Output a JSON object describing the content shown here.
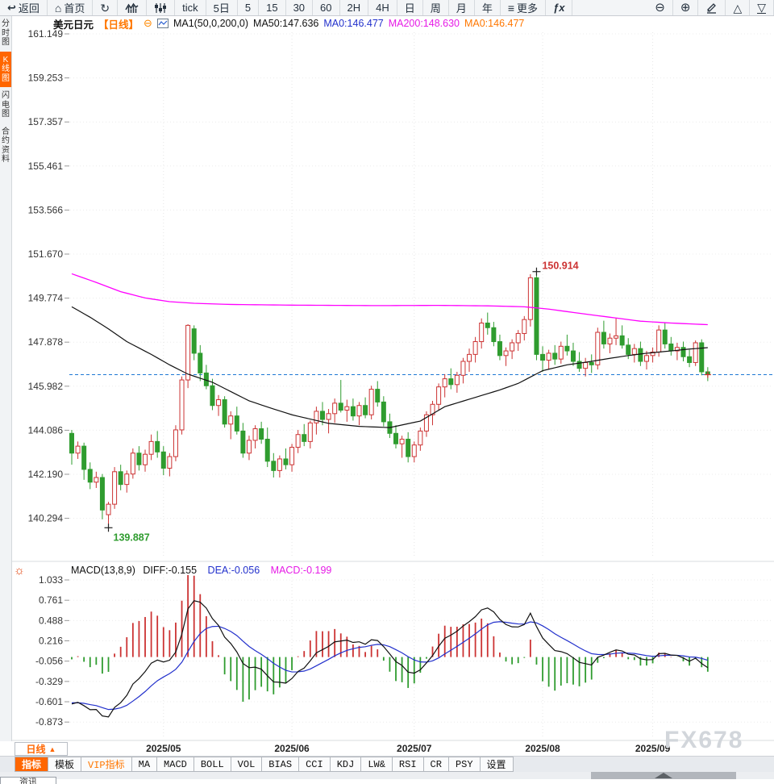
{
  "toolbar": {
    "items": [
      {
        "name": "back-button",
        "icon": "back",
        "label": "返回"
      },
      {
        "name": "home-button",
        "icon": "home",
        "label": "首页"
      },
      {
        "name": "refresh-button",
        "icon": "refresh",
        "label": ""
      },
      {
        "name": "area-chart-button",
        "icon": "area-chart",
        "label": ""
      },
      {
        "name": "candle-chart-button",
        "icon": "candle-chart",
        "label": ""
      },
      {
        "name": "tick-period-button",
        "label": "tick"
      },
      {
        "name": "period-5d-button",
        "label": "5日"
      },
      {
        "name": "period-5m-button",
        "label": "5"
      },
      {
        "name": "period-15m-button",
        "label": "15"
      },
      {
        "name": "period-30m-button",
        "label": "30"
      },
      {
        "name": "period-60m-button",
        "label": "60"
      },
      {
        "name": "period-2h-button",
        "label": "2H"
      },
      {
        "name": "period-4h-button",
        "label": "4H"
      },
      {
        "name": "period-day-button",
        "label": "日"
      },
      {
        "name": "period-week-button",
        "label": "周"
      },
      {
        "name": "period-month-button",
        "label": "月"
      },
      {
        "name": "period-year-button",
        "label": "年"
      },
      {
        "name": "more-button",
        "icon": "menu",
        "label": "更多"
      },
      {
        "name": "formula-button",
        "icon": "fx",
        "label": ""
      },
      {
        "name": "zoom-out-button",
        "icon": "zoom-out",
        "label": ""
      },
      {
        "name": "zoom-in-button",
        "icon": "zoom-in",
        "label": ""
      },
      {
        "name": "draw-button",
        "icon": "pencil",
        "label": ""
      },
      {
        "name": "triangle-up-button",
        "icon": "triangle-up",
        "label": ""
      },
      {
        "name": "collapse-bottom-button",
        "icon": "triangle-down",
        "label": ""
      }
    ]
  },
  "sidebar": {
    "items": [
      {
        "name": "sidebar-item-timeshare",
        "label": "分时图",
        "active": false
      },
      {
        "name": "sidebar-item-kline",
        "label": "K线图",
        "active": true
      },
      {
        "name": "sidebar-item-lightning",
        "label": "闪电图",
        "active": false
      },
      {
        "name": "sidebar-item-contract",
        "label": "合约资料",
        "active": false
      }
    ]
  },
  "chart_header": {
    "symbol": "美元日元",
    "period_tag": "【日线】",
    "collapse_glyph": "⊖",
    "ma_settings": "MA1(50,0,200,0)",
    "ma50": "MA50:147.636",
    "ma0_blue": "MA0:146.477",
    "ma200": "MA200:148.630",
    "ma0_orange": "MA0:146.477"
  },
  "macd_header": {
    "settings_glyph": "☼",
    "formula": "MACD(13,8,9)",
    "diff": "DIFF:-0.155",
    "dea": "DEA:-0.056",
    "macd": "MACD:-0.199"
  },
  "xaxis": {
    "period_button": {
      "label": "日线",
      "arrow": "▲"
    }
  },
  "tabbar": {
    "tabs": [
      {
        "name": "tab-indicator",
        "label": "指标",
        "active": true
      },
      {
        "name": "tab-template",
        "label": "模板"
      },
      {
        "name": "tab-vip-indicator",
        "label": "VIP指标",
        "vip": true
      },
      {
        "name": "tab-ma",
        "label": "MA"
      },
      {
        "name": "tab-macd",
        "label": "MACD"
      },
      {
        "name": "tab-boll",
        "label": "BOLL"
      },
      {
        "name": "tab-vol",
        "label": "VOL"
      },
      {
        "name": "tab-bias",
        "label": "BIAS"
      },
      {
        "name": "tab-cci",
        "label": "CCI"
      },
      {
        "name": "tab-kdj",
        "label": "KDJ"
      },
      {
        "name": "tab-lwr",
        "label": "LW&"
      },
      {
        "name": "tab-rsi",
        "label": "RSI"
      },
      {
        "name": "tab-cr",
        "label": "CR"
      },
      {
        "name": "tab-psy",
        "label": "PSY"
      },
      {
        "name": "tab-settings",
        "label": "设置"
      }
    ]
  },
  "watermark": "FX678",
  "bottom_partial_tab": "资讯",
  "colors": {
    "up_candle": "#cc3333",
    "down_candle": "#2f9c2f",
    "ma50_line": "#111111",
    "ma200_line": "#ff00ff",
    "current_price_line": "#1e78d4",
    "accent_orange": "#ff6600",
    "dea_line": "#2230cc",
    "diff_line": "#111111"
  },
  "chart_data": {
    "type": "candlestick+macd",
    "symbol": "美元日元",
    "period": "日线",
    "y_axis_labels": [
      "161.149",
      "159.253",
      "157.357",
      "155.461",
      "153.566",
      "151.670",
      "149.774",
      "147.878",
      "145.982",
      "144.086",
      "142.190",
      "140.294"
    ],
    "x_axis_months": [
      {
        "label": "2025/05",
        "index": 15
      },
      {
        "label": "2025/06",
        "index": 36
      },
      {
        "label": "2025/07",
        "index": 56
      },
      {
        "label": "2025/08",
        "index": 77
      },
      {
        "label": "2025/09",
        "index": 95
      }
    ],
    "current_price": 146.477,
    "high_annotation": {
      "index": 76,
      "price": 150.914,
      "label": "150.914"
    },
    "low_annotation": {
      "index": 6,
      "price": 139.887,
      "label": "139.887"
    },
    "candles": [
      [
        143.95,
        144.1,
        142.6,
        143.1
      ],
      [
        143.1,
        143.6,
        142.85,
        143.4
      ],
      [
        143.4,
        143.55,
        141.95,
        142.4
      ],
      [
        142.4,
        142.7,
        141.55,
        141.85
      ],
      [
        141.85,
        142.3,
        141.6,
        142.05
      ],
      [
        142.05,
        142.2,
        140.25,
        140.65
      ],
      [
        140.45,
        141.0,
        139.887,
        140.9
      ],
      [
        140.9,
        142.5,
        140.7,
        142.3
      ],
      [
        142.3,
        142.6,
        141.5,
        141.75
      ],
      [
        141.75,
        142.35,
        141.4,
        142.2
      ],
      [
        142.2,
        143.3,
        142.0,
        143.1
      ],
      [
        143.1,
        143.4,
        142.35,
        142.6
      ],
      [
        142.6,
        143.25,
        142.3,
        143.05
      ],
      [
        143.05,
        143.9,
        142.8,
        143.6
      ],
      [
        143.6,
        144.05,
        142.9,
        143.15
      ],
      [
        143.15,
        143.4,
        142.15,
        142.45
      ],
      [
        142.45,
        143.1,
        142.1,
        142.95
      ],
      [
        142.95,
        144.3,
        142.75,
        144.1
      ],
      [
        144.1,
        146.4,
        143.9,
        146.25
      ],
      [
        146.25,
        148.65,
        145.9,
        148.6
      ],
      [
        148.45,
        148.6,
        147.1,
        147.4
      ],
      [
        147.4,
        147.75,
        146.2,
        146.55
      ],
      [
        146.55,
        146.9,
        145.85,
        146.0
      ],
      [
        146.0,
        146.3,
        144.95,
        145.15
      ],
      [
        145.15,
        145.6,
        144.7,
        145.4
      ],
      [
        145.4,
        145.55,
        144.2,
        144.35
      ],
      [
        144.35,
        144.9,
        143.7,
        144.7
      ],
      [
        144.7,
        145.1,
        143.9,
        144.05
      ],
      [
        144.05,
        144.4,
        142.9,
        143.1
      ],
      [
        143.1,
        143.85,
        142.8,
        143.65
      ],
      [
        143.65,
        144.3,
        143.3,
        144.15
      ],
      [
        144.15,
        144.45,
        143.5,
        143.7
      ],
      [
        143.7,
        144.2,
        142.5,
        142.75
      ],
      [
        142.75,
        143.1,
        142.05,
        142.35
      ],
      [
        142.35,
        143.0,
        142.05,
        142.85
      ],
      [
        142.85,
        143.3,
        142.4,
        142.6
      ],
      [
        142.6,
        143.5,
        142.3,
        143.35
      ],
      [
        143.35,
        144.1,
        143.1,
        143.9
      ],
      [
        143.9,
        144.35,
        143.4,
        143.6
      ],
      [
        143.6,
        144.5,
        143.3,
        144.4
      ],
      [
        144.4,
        145.1,
        143.9,
        144.9
      ],
      [
        144.9,
        145.3,
        144.3,
        144.55
      ],
      [
        144.55,
        145.0,
        143.95,
        144.8
      ],
      [
        144.8,
        145.45,
        144.4,
        145.25
      ],
      [
        145.25,
        146.25,
        144.85,
        144.95
      ],
      [
        144.95,
        145.4,
        144.45,
        145.1
      ],
      [
        145.1,
        145.45,
        144.5,
        144.7
      ],
      [
        144.7,
        145.3,
        144.3,
        145.15
      ],
      [
        145.15,
        145.5,
        144.6,
        144.75
      ],
      [
        144.75,
        146.0,
        144.55,
        145.85
      ],
      [
        145.85,
        146.2,
        145.1,
        145.3
      ],
      [
        145.3,
        145.55,
        144.25,
        144.45
      ],
      [
        144.45,
        144.8,
        143.75,
        143.95
      ],
      [
        143.95,
        144.3,
        143.3,
        143.5
      ],
      [
        143.5,
        143.85,
        142.9,
        143.7
      ],
      [
        143.7,
        144.0,
        142.7,
        142.95
      ],
      [
        142.95,
        143.6,
        142.7,
        143.45
      ],
      [
        143.45,
        144.2,
        143.2,
        144.05
      ],
      [
        144.05,
        144.9,
        143.8,
        144.75
      ],
      [
        144.75,
        145.35,
        144.3,
        145.2
      ],
      [
        145.2,
        146.1,
        144.95,
        145.95
      ],
      [
        145.95,
        146.5,
        145.5,
        146.3
      ],
      [
        146.3,
        146.75,
        145.85,
        146.05
      ],
      [
        146.05,
        146.6,
        145.7,
        146.45
      ],
      [
        146.45,
        147.2,
        146.1,
        147.05
      ],
      [
        147.05,
        147.6,
        146.6,
        147.35
      ],
      [
        147.35,
        148.1,
        147.0,
        147.9
      ],
      [
        147.9,
        148.9,
        147.6,
        148.7
      ],
      [
        148.7,
        149.15,
        148.2,
        148.5
      ],
      [
        148.5,
        148.75,
        147.7,
        147.9
      ],
      [
        147.9,
        148.2,
        147.1,
        147.3
      ],
      [
        147.3,
        147.65,
        146.85,
        147.5
      ],
      [
        147.5,
        148.0,
        147.15,
        147.85
      ],
      [
        147.85,
        148.4,
        147.5,
        148.25
      ],
      [
        148.25,
        149.0,
        147.95,
        148.85
      ],
      [
        148.85,
        150.8,
        148.55,
        150.65
      ],
      [
        150.65,
        150.914,
        147.1,
        147.35
      ],
      [
        147.35,
        147.7,
        146.6,
        147.1
      ],
      [
        147.1,
        147.55,
        146.7,
        147.4
      ],
      [
        147.4,
        147.75,
        146.9,
        147.15
      ],
      [
        147.15,
        147.9,
        146.95,
        147.7
      ],
      [
        147.7,
        148.2,
        147.3,
        147.5
      ],
      [
        147.5,
        147.85,
        146.85,
        147.05
      ],
      [
        147.05,
        147.45,
        146.6,
        146.75
      ],
      [
        146.75,
        147.2,
        146.4,
        147.0
      ],
      [
        147.0,
        147.35,
        146.55,
        146.9
      ],
      [
        146.9,
        148.5,
        146.7,
        148.3
      ],
      [
        148.3,
        148.8,
        147.6,
        147.8
      ],
      [
        147.8,
        148.25,
        147.4,
        148.05
      ],
      [
        148.05,
        148.9,
        147.75,
        148.15
      ],
      [
        148.15,
        148.6,
        147.6,
        147.75
      ],
      [
        147.75,
        148.05,
        147.15,
        147.35
      ],
      [
        147.35,
        147.8,
        147.0,
        147.6
      ],
      [
        147.6,
        147.9,
        146.85,
        147.05
      ],
      [
        147.05,
        147.5,
        146.7,
        147.3
      ],
      [
        147.3,
        147.65,
        147.0,
        147.45
      ],
      [
        147.45,
        148.6,
        147.25,
        148.4
      ],
      [
        148.4,
        148.7,
        147.6,
        147.8
      ],
      [
        147.8,
        148.1,
        147.3,
        147.5
      ],
      [
        147.5,
        147.85,
        147.1,
        147.65
      ],
      [
        147.65,
        147.9,
        147.05,
        147.25
      ],
      [
        147.25,
        147.55,
        146.8,
        147.0
      ],
      [
        147.0,
        147.95,
        146.85,
        147.85
      ],
      [
        147.85,
        148.0,
        146.45,
        146.6
      ],
      [
        146.6,
        146.8,
        146.2,
        146.477
      ]
    ],
    "ma50_points": [
      [
        0,
        149.4
      ],
      [
        3,
        148.95
      ],
      [
        6,
        148.45
      ],
      [
        9,
        147.9
      ],
      [
        13,
        147.35
      ],
      [
        16,
        146.9
      ],
      [
        19,
        146.5
      ],
      [
        23,
        146.15
      ],
      [
        26,
        145.75
      ],
      [
        29,
        145.35
      ],
      [
        33,
        145.0
      ],
      [
        36,
        144.75
      ],
      [
        42,
        144.38
      ],
      [
        47,
        144.25
      ],
      [
        52,
        144.2
      ],
      [
        57,
        144.48
      ],
      [
        61,
        145.1
      ],
      [
        66,
        145.5
      ],
      [
        70,
        145.82
      ],
      [
        73,
        146.1
      ],
      [
        77,
        146.65
      ],
      [
        81,
        146.9
      ],
      [
        85,
        147.05
      ],
      [
        88,
        147.18
      ],
      [
        91,
        147.3
      ],
      [
        94,
        147.4
      ],
      [
        98,
        147.5
      ],
      [
        101,
        147.58
      ],
      [
        104,
        147.64
      ]
    ],
    "ma200_points": [
      [
        0,
        150.82
      ],
      [
        4,
        150.45
      ],
      [
        8,
        150.05
      ],
      [
        12,
        149.78
      ],
      [
        16,
        149.62
      ],
      [
        20,
        149.55
      ],
      [
        26,
        149.5
      ],
      [
        36,
        149.47
      ],
      [
        50,
        149.45
      ],
      [
        60,
        149.46
      ],
      [
        68,
        149.44
      ],
      [
        74,
        149.4
      ],
      [
        78,
        149.3
      ],
      [
        83,
        149.12
      ],
      [
        88,
        148.95
      ],
      [
        93,
        148.78
      ],
      [
        98,
        148.7
      ],
      [
        104,
        148.63
      ]
    ],
    "macd": {
      "params": "13,8,9",
      "diff_last": -0.155,
      "dea_last": -0.056,
      "macd_last": -0.199,
      "y_axis_labels": [
        "1.033",
        "0.761",
        "0.488",
        "0.216",
        "-0.056",
        "-0.329",
        "-0.601",
        "-0.873"
      ],
      "warmup_closes": [
        149.6,
        149.3,
        148.9,
        148.5,
        148.1,
        147.7,
        147.3,
        146.9,
        146.5,
        146.1,
        145.7,
        145.35,
        145.05,
        144.8,
        144.6,
        144.45,
        144.3,
        144.2,
        144.1,
        144.0
      ]
    }
  }
}
